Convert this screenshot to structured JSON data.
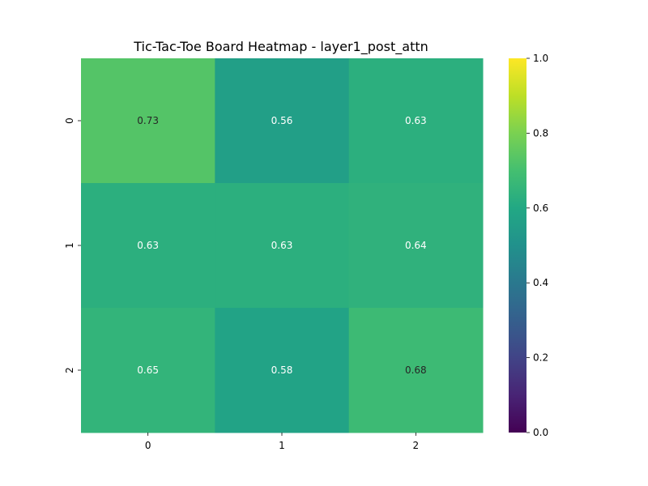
{
  "chart_data": {
    "type": "heatmap",
    "title": "Tic-Tac-Toe Board Heatmap - layer1_post_attn",
    "x_categories": [
      "0",
      "1",
      "2"
    ],
    "y_categories": [
      "0",
      "1",
      "2"
    ],
    "values": [
      [
        0.73,
        0.56,
        0.63
      ],
      [
        0.63,
        0.63,
        0.64
      ],
      [
        0.65,
        0.58,
        0.68
      ]
    ],
    "value_labels": [
      [
        "0.73",
        "0.56",
        "0.63"
      ],
      [
        "0.63",
        "0.63",
        "0.64"
      ],
      [
        "0.65",
        "0.58",
        "0.68"
      ]
    ],
    "colormap": "viridis",
    "vmin": 0.0,
    "vmax": 1.0,
    "colorbar_ticks": [
      "0.0",
      "0.2",
      "0.4",
      "0.6",
      "0.8",
      "1.0"
    ],
    "grid": false
  }
}
